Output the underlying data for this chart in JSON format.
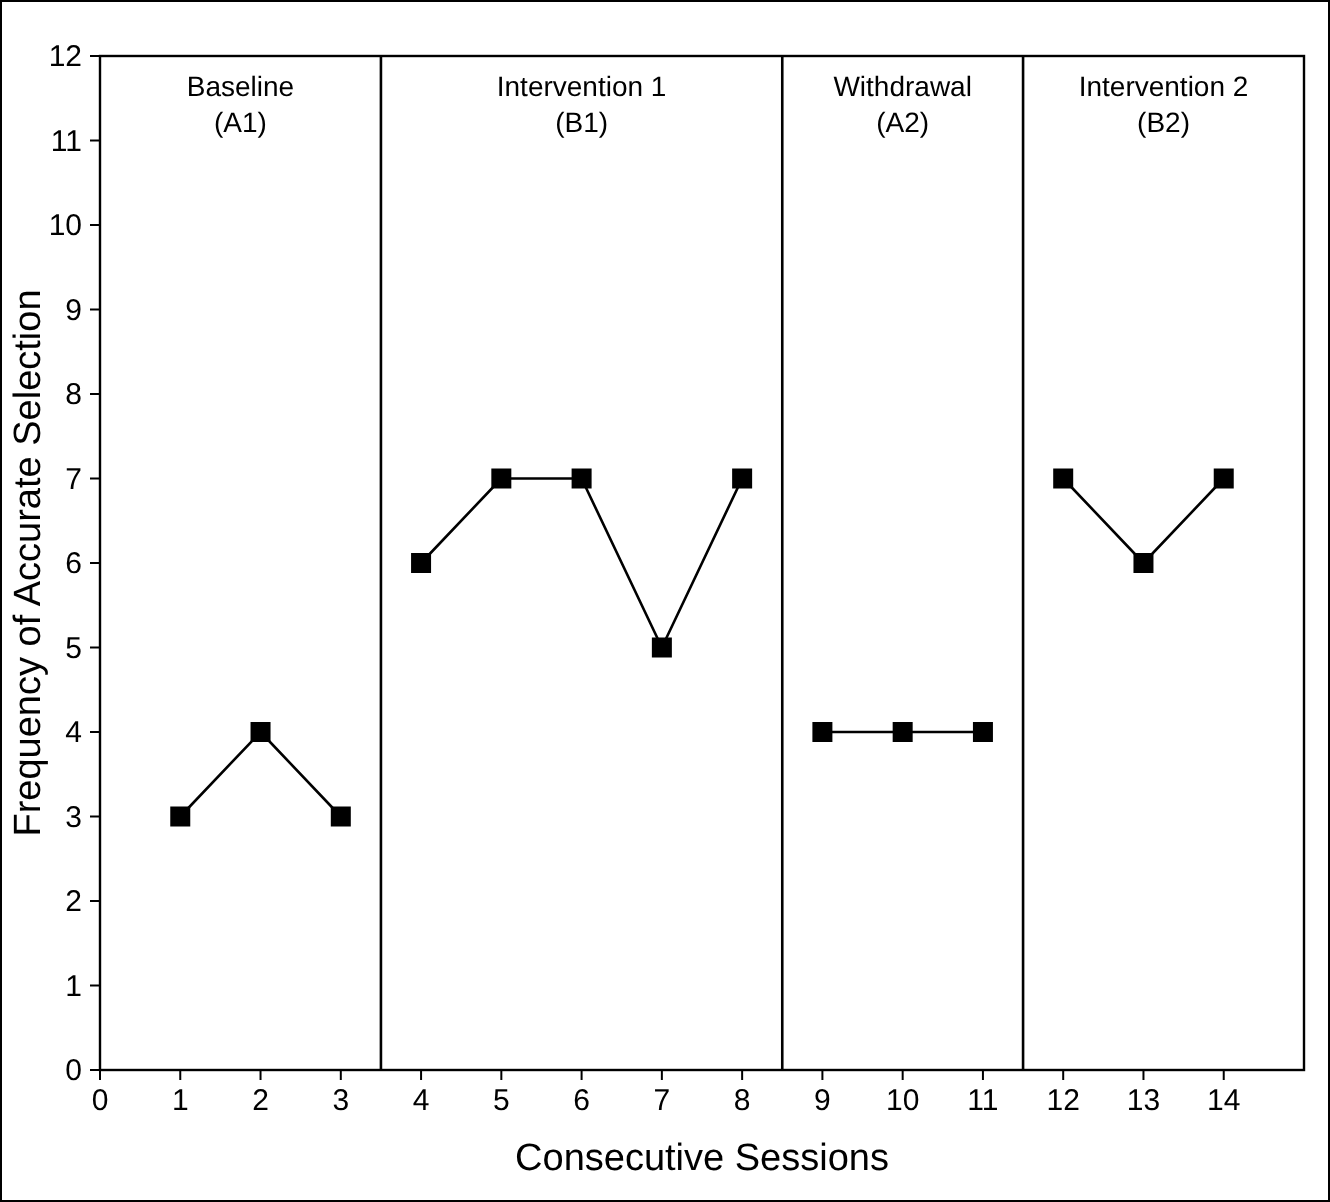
{
  "chart_data": {
    "type": "line",
    "xlabel": "Consecutive Sessions",
    "ylabel": "Frequency of Accurate Selection",
    "xlim": [
      0,
      15
    ],
    "xticks": [
      0,
      1,
      2,
      3,
      4,
      5,
      6,
      7,
      8,
      9,
      10,
      11,
      12,
      13,
      14
    ],
    "ylim": [
      0,
      12
    ],
    "yticks": [
      0,
      1,
      2,
      3,
      4,
      5,
      6,
      7,
      8,
      9,
      10,
      11,
      12
    ],
    "grid": false,
    "marker": "square",
    "line_style": "solid",
    "series": [
      {
        "color": "#000000",
        "x": [
          1,
          2,
          3
        ],
        "values": [
          3,
          4,
          3
        ]
      },
      {
        "color": "#000000",
        "x": [
          4,
          5,
          6,
          7,
          8
        ],
        "values": [
          6,
          7,
          7,
          5,
          7
        ]
      },
      {
        "color": "#000000",
        "x": [
          9,
          10,
          11
        ],
        "values": [
          4,
          4,
          4
        ]
      },
      {
        "color": "#000000",
        "x": [
          12,
          13,
          14
        ],
        "values": [
          7,
          6,
          7
        ]
      }
    ],
    "ref_lines": [
      {
        "axis": "x",
        "value": 3.5,
        "color": "#000000"
      },
      {
        "axis": "x",
        "value": 8.5,
        "color": "#000000"
      },
      {
        "axis": "x",
        "value": 11.5,
        "color": "#000000"
      }
    ],
    "annotations": [
      "Baseline\n(A1)",
      "Intervention 1\n(B1)",
      "Withdrawal\n(A2)",
      "Intervention 2\n(B2)"
    ]
  }
}
